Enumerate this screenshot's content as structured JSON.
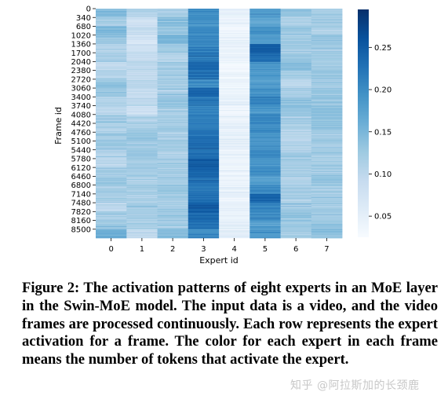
{
  "chart_data": {
    "type": "heatmap",
    "xlabel": "Expert id",
    "ylabel": "Frame id",
    "x_tick_labels": [
      "0",
      "1",
      "2",
      "3",
      "4",
      "5",
      "6",
      "7"
    ],
    "y_tick_labels": [
      "0",
      "340",
      "680",
      "1020",
      "1360",
      "1700",
      "2040",
      "2380",
      "2720",
      "3060",
      "3400",
      "3740",
      "4080",
      "4420",
      "4760",
      "5100",
      "5440",
      "5780",
      "6120",
      "6460",
      "6800",
      "7140",
      "7480",
      "7820",
      "8160",
      "8500"
    ],
    "colorbar_ticks": [
      0.05,
      0.1,
      0.15,
      0.2,
      0.25
    ],
    "colorbar_tick_labels": [
      "0.05",
      "0.10",
      "0.15",
      "0.20",
      "0.25"
    ],
    "value_range": [
      0.025,
      0.295
    ],
    "colormap": [
      "#f7fbff",
      "#deebf7",
      "#c6dbef",
      "#9ecae1",
      "#6baed6",
      "#4292c6",
      "#2171b5",
      "#08519c",
      "#08306b"
    ],
    "frame_range": [
      0,
      8840
    ],
    "rows_per_band": 52,
    "band_values": [
      [
        0.14,
        0.11,
        0.12,
        0.2,
        0.05,
        0.18,
        0.13,
        0.12
      ],
      [
        0.12,
        0.08,
        0.14,
        0.19,
        0.04,
        0.17,
        0.11,
        0.12
      ],
      [
        0.15,
        0.09,
        0.13,
        0.2,
        0.03,
        0.19,
        0.13,
        0.11
      ],
      [
        0.13,
        0.07,
        0.15,
        0.2,
        0.04,
        0.18,
        0.12,
        0.13
      ],
      [
        0.11,
        0.08,
        0.12,
        0.21,
        0.04,
        0.25,
        0.12,
        0.12
      ],
      [
        0.12,
        0.09,
        0.11,
        0.22,
        0.04,
        0.23,
        0.13,
        0.12
      ],
      [
        0.1,
        0.1,
        0.12,
        0.24,
        0.03,
        0.19,
        0.14,
        0.12
      ],
      [
        0.11,
        0.09,
        0.12,
        0.23,
        0.04,
        0.18,
        0.12,
        0.13
      ],
      [
        0.13,
        0.1,
        0.12,
        0.2,
        0.04,
        0.18,
        0.1,
        0.12
      ],
      [
        0.13,
        0.09,
        0.12,
        0.24,
        0.04,
        0.19,
        0.12,
        0.13
      ],
      [
        0.11,
        0.1,
        0.13,
        0.22,
        0.05,
        0.21,
        0.13,
        0.13
      ],
      [
        0.1,
        0.08,
        0.12,
        0.21,
        0.04,
        0.19,
        0.13,
        0.14
      ],
      [
        0.12,
        0.11,
        0.12,
        0.21,
        0.04,
        0.21,
        0.12,
        0.14
      ],
      [
        0.11,
        0.12,
        0.12,
        0.22,
        0.05,
        0.2,
        0.11,
        0.13
      ],
      [
        0.12,
        0.13,
        0.11,
        0.23,
        0.05,
        0.19,
        0.1,
        0.12
      ],
      [
        0.13,
        0.12,
        0.12,
        0.23,
        0.05,
        0.19,
        0.11,
        0.12
      ],
      [
        0.11,
        0.13,
        0.11,
        0.23,
        0.04,
        0.2,
        0.12,
        0.12
      ],
      [
        0.1,
        0.12,
        0.12,
        0.25,
        0.04,
        0.19,
        0.12,
        0.12
      ],
      [
        0.12,
        0.12,
        0.12,
        0.24,
        0.04,
        0.2,
        0.12,
        0.12
      ],
      [
        0.13,
        0.11,
        0.12,
        0.23,
        0.04,
        0.18,
        0.11,
        0.13
      ],
      [
        0.12,
        0.12,
        0.13,
        0.22,
        0.05,
        0.2,
        0.12,
        0.12
      ],
      [
        0.12,
        0.11,
        0.12,
        0.23,
        0.04,
        0.24,
        0.12,
        0.12
      ],
      [
        0.1,
        0.12,
        0.12,
        0.25,
        0.05,
        0.21,
        0.12,
        0.12
      ],
      [
        0.12,
        0.12,
        0.12,
        0.24,
        0.04,
        0.2,
        0.13,
        0.12
      ],
      [
        0.13,
        0.12,
        0.12,
        0.23,
        0.05,
        0.18,
        0.13,
        0.13
      ],
      [
        0.16,
        0.1,
        0.14,
        0.2,
        0.05,
        0.19,
        0.12,
        0.14
      ]
    ]
  },
  "caption": "Figure 2: The activation patterns of eight experts in an MoE layer in the Swin-MoE model. The input data is a video, and the video frames are processed continuously. Each row represents the expert activation for a frame. The color for each expert in each frame means the number of tokens that activate the expert.",
  "watermark": "知乎 @阿拉斯加的长颈鹿"
}
